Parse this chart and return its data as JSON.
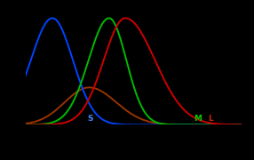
{
  "background_color": "#000000",
  "xlim": [
    380,
    780
  ],
  "ylim": [
    0.0,
    1.05
  ],
  "S_color": "#0044ff",
  "M_color": "#00bb00",
  "L_color": "#cc0000",
  "R_color": "#993300",
  "label_S_color": "#4488ff",
  "label_M_color": "#00cc00",
  "label_L_color": "#cc2200",
  "linewidth": 1.4,
  "label_fontsize": 6.5,
  "figsize": [
    2.86,
    1.8
  ],
  "dpi": 100
}
